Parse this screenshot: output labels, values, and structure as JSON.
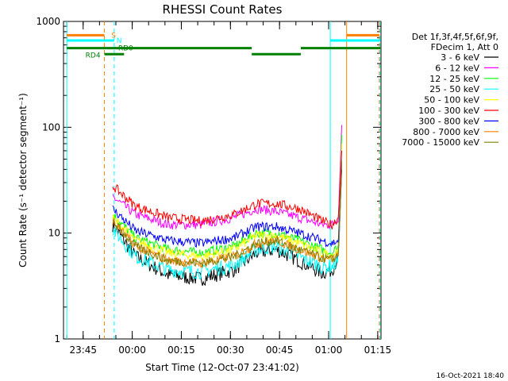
{
  "chart_data": {
    "type": "line",
    "title": "RHESSI Count Rates",
    "xlabel": "Start Time (12-Oct-07 23:41:02)",
    "ylabel": "Count Rate (s⁻¹ detector segment⁻¹)",
    "yscale": "log",
    "ylim": [
      1,
      1000
    ],
    "xlim_minutes_from_2341": [
      -2,
      95
    ],
    "x_tick_labels": [
      "23:45",
      "00:00",
      "00:15",
      "00:30",
      "00:45",
      "01:00",
      "01:15"
    ],
    "x_tick_minutes": [
      4,
      19,
      34,
      49,
      64,
      79,
      94
    ],
    "y_tick_labels": [
      "1",
      "10",
      "100",
      "1000"
    ],
    "y_tick_values": [
      1,
      10,
      100,
      1000
    ],
    "grid": false,
    "legend_header": [
      "Det 1f,3f,4f,5f,6f,9f,",
      "FDecim 1, Att 0"
    ],
    "legend_position": "right",
    "series": [
      {
        "name": "3 - 6 keV",
        "color": "#000000",
        "x": [
          13,
          20,
          30,
          40,
          50,
          57,
          63,
          70,
          77,
          80,
          82,
          83
        ],
        "y": [
          12,
          6,
          4,
          3.7,
          4.5,
          6.5,
          7,
          5.5,
          4.2,
          4.5,
          6,
          40
        ]
      },
      {
        "name": "6 - 12 keV",
        "color": "#ff00ff",
        "x": [
          13,
          20,
          30,
          40,
          50,
          57,
          63,
          70,
          77,
          80,
          82,
          83
        ],
        "y": [
          22,
          15,
          12,
          12,
          14,
          17,
          16,
          14,
          12,
          12,
          14,
          105
        ]
      },
      {
        "name": "12 - 25 keV",
        "color": "#00ff00",
        "x": [
          13,
          20,
          30,
          40,
          50,
          57,
          63,
          70,
          77,
          80,
          82,
          83
        ],
        "y": [
          15,
          9,
          7,
          6.5,
          7.5,
          10,
          10,
          8.5,
          7,
          6.5,
          7.5,
          85
        ]
      },
      {
        "name": "25 - 50 keV",
        "color": "#00ffff",
        "x": [
          13,
          20,
          30,
          40,
          50,
          57,
          63,
          70,
          77,
          80,
          82,
          83
        ],
        "y": [
          11,
          6,
          4.5,
          4.3,
          5,
          7,
          7.5,
          6,
          4.8,
          4.8,
          5.5,
          50
        ]
      },
      {
        "name": "50 - 100 keV",
        "color": "#ffff00",
        "x": [
          13,
          20,
          30,
          40,
          50,
          57,
          63,
          70,
          77,
          80,
          82,
          83
        ],
        "y": [
          14,
          8.5,
          6.5,
          6,
          7,
          9.5,
          9.5,
          8,
          6.5,
          6.2,
          7,
          70
        ]
      },
      {
        "name": "100 - 300 keV",
        "color": "#ff0000",
        "x": [
          13,
          20,
          30,
          40,
          50,
          57,
          63,
          70,
          77,
          80,
          82,
          83
        ],
        "y": [
          28,
          18,
          14,
          13,
          15,
          19,
          19,
          17,
          13,
          12,
          14,
          60
        ]
      },
      {
        "name": "300 - 800 keV",
        "color": "#0000ff",
        "x": [
          13,
          20,
          30,
          40,
          50,
          57,
          63,
          70,
          77,
          80,
          82,
          83
        ],
        "y": [
          17,
          10.5,
          8.5,
          8,
          9,
          11.5,
          11.5,
          10,
          8.5,
          8,
          8.5,
          45
        ]
      },
      {
        "name": "800 - 7000 keV",
        "color": "#ff8000",
        "x": [
          13,
          20,
          30,
          40,
          50,
          57,
          63,
          70,
          77,
          80,
          82,
          83
        ],
        "y": [
          13,
          7.5,
          5.5,
          5.2,
          6,
          8,
          8.5,
          7,
          5.8,
          5.6,
          6.2,
          48
        ]
      },
      {
        "name": "7000 - 15000 keV",
        "color": "#808000",
        "x": [
          13,
          20,
          30,
          40,
          50,
          57,
          63,
          70,
          77,
          80,
          82,
          83
        ],
        "y": [
          13,
          7.5,
          5.5,
          5.2,
          6,
          8,
          8.5,
          7,
          5.8,
          5.6,
          6.2,
          48
        ]
      }
    ],
    "vertical_lines": [
      {
        "x": -1,
        "color": "#00ffff",
        "style": "solid"
      },
      {
        "x": 10.5,
        "color": "#ff8000",
        "style": "dashed"
      },
      {
        "x": 13.5,
        "color": "#00ffff",
        "style": "dashed"
      },
      {
        "x": 79.5,
        "color": "#00ffff",
        "style": "solid"
      },
      {
        "x": 84.5,
        "color": "#ff8000",
        "style": "solid"
      },
      {
        "x": 94.5,
        "color": "#ff8000",
        "style": "dashed"
      },
      {
        "x": 94.8,
        "color": "#00ffff",
        "style": "dashed"
      }
    ],
    "status_bars": [
      {
        "label": "S",
        "color": "#ff8000",
        "y": 740,
        "segments": [
          [
            -1,
            10.5
          ],
          [
            84.5,
            94.5
          ]
        ]
      },
      {
        "label": "N",
        "color": "#00ffff",
        "y": 660,
        "segments": [
          [
            -1,
            13.5
          ],
          [
            79.5,
            94.8
          ]
        ]
      },
      {
        "label": "RD0",
        "color": "#008000",
        "y": 560,
        "segments": [
          [
            -1,
            94.8
          ]
        ],
        "gaps": [
          [
            55.5,
            70.5
          ]
        ]
      },
      {
        "label": "RD4",
        "color": "#008000",
        "y": 490,
        "segments": [
          [
            10.5,
            16.5
          ],
          [
            55.5,
            70.5
          ]
        ]
      }
    ]
  },
  "footer_timestamp": "16-Oct-2021 18:40"
}
